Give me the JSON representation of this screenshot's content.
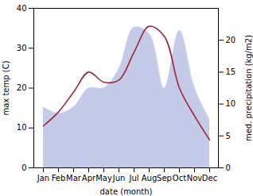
{
  "chart_data": {
    "type": "line",
    "xlabel": "date (month)",
    "ylabel": "max temp (C)",
    "y2label": "med. precipitation (kg/m2)",
    "categories": [
      "Jan",
      "Feb",
      "Mar",
      "Apr",
      "May",
      "Jun",
      "Jul",
      "Aug",
      "Sep",
      "Oct",
      "Nov",
      "Dec"
    ],
    "series": [
      {
        "type": "line",
        "color": "#99243c",
        "values": [
          10.5,
          14.0,
          19.0,
          24.0,
          21.5,
          22.0,
          29.0,
          35.5,
          33.0,
          20.0,
          13.0,
          7.0
        ]
      },
      {
        "type": "area",
        "axis": "y2",
        "color": "#c5cae8",
        "values": [
          9.5,
          8.5,
          9.5,
          12.5,
          12.5,
          15.5,
          22.0,
          21.0,
          12.5,
          21.5,
          12.5,
          7.5
        ]
      }
    ],
    "ylim": [
      0,
      40
    ],
    "yticks": [
      0,
      10,
      20,
      30,
      40
    ],
    "y2lim": [
      0,
      25
    ],
    "y2ticks": [
      0,
      5,
      10,
      15,
      20
    ]
  }
}
